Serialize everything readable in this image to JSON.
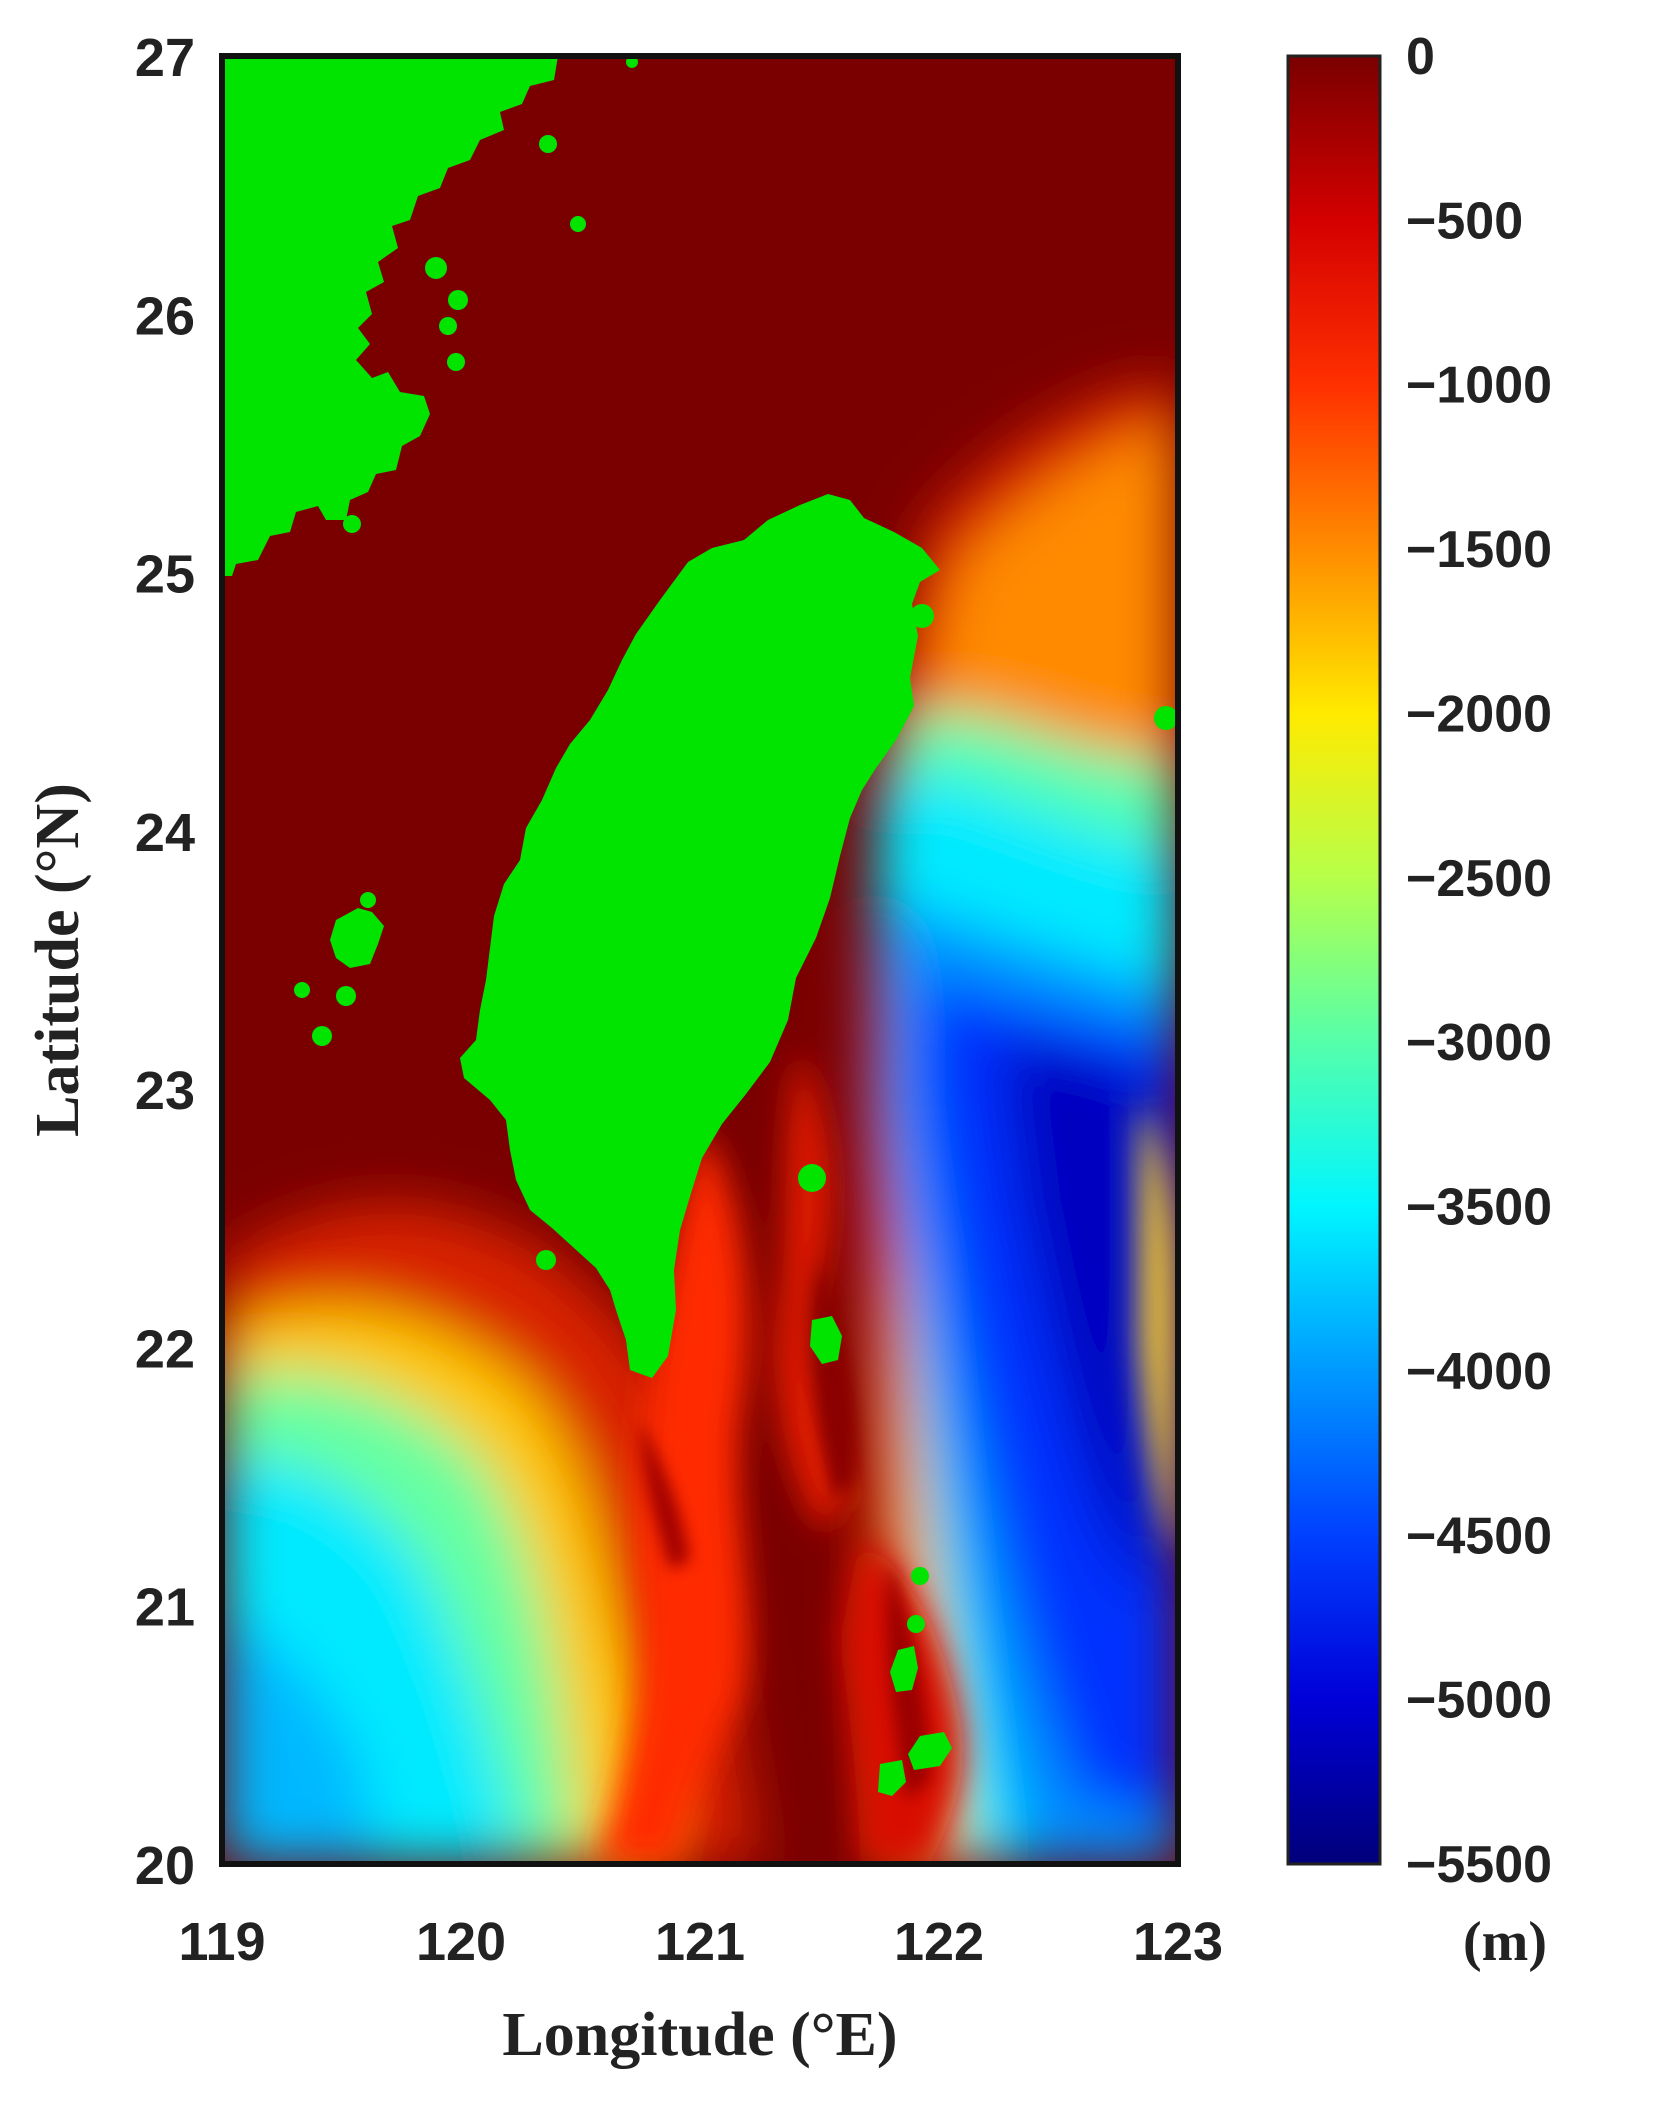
{
  "chart_data": {
    "type": "heatmap",
    "title": "",
    "xlabel": "Longitude (°E)",
    "ylabel": "Latitude (°N)",
    "xlim": [
      119,
      123
    ],
    "ylim": [
      20,
      27
    ],
    "xticks": [
      "119",
      "120",
      "121",
      "122",
      "123"
    ],
    "yticks": [
      "20",
      "21",
      "22",
      "23",
      "24",
      "25",
      "26",
      "27"
    ],
    "colorbar": {
      "label": "(m)",
      "range": [
        -5500,
        0
      ],
      "ticks": [
        "0",
        "500",
        "1000",
        "1500",
        "2000",
        "2500",
        "3000",
        "3500",
        "4000",
        "4500",
        "5000",
        "5500"
      ],
      "tick_prefix": "−",
      "colormap": "jet",
      "stops": [
        {
          "depth": 0,
          "color": "#7a0000"
        },
        {
          "depth": -500,
          "color": "#d40000"
        },
        {
          "depth": -1000,
          "color": "#ff3000"
        },
        {
          "depth": -1500,
          "color": "#ff8c00"
        },
        {
          "depth": -2000,
          "color": "#ffea00"
        },
        {
          "depth": -2500,
          "color": "#b6ff4a"
        },
        {
          "depth": -3000,
          "color": "#55ffaa"
        },
        {
          "depth": -3500,
          "color": "#00f6ff"
        },
        {
          "depth": -4000,
          "color": "#0099ff"
        },
        {
          "depth": -4500,
          "color": "#0040ff"
        },
        {
          "depth": -5000,
          "color": "#0000d8"
        },
        {
          "depth": -5500,
          "color": "#00007a"
        }
      ]
    },
    "land_color": "#00e400",
    "features": {
      "taiwan_island": "land",
      "mainland_china_coast": "land",
      "penghu_islands": "land",
      "luzon_arc_islands": "land"
    }
  }
}
